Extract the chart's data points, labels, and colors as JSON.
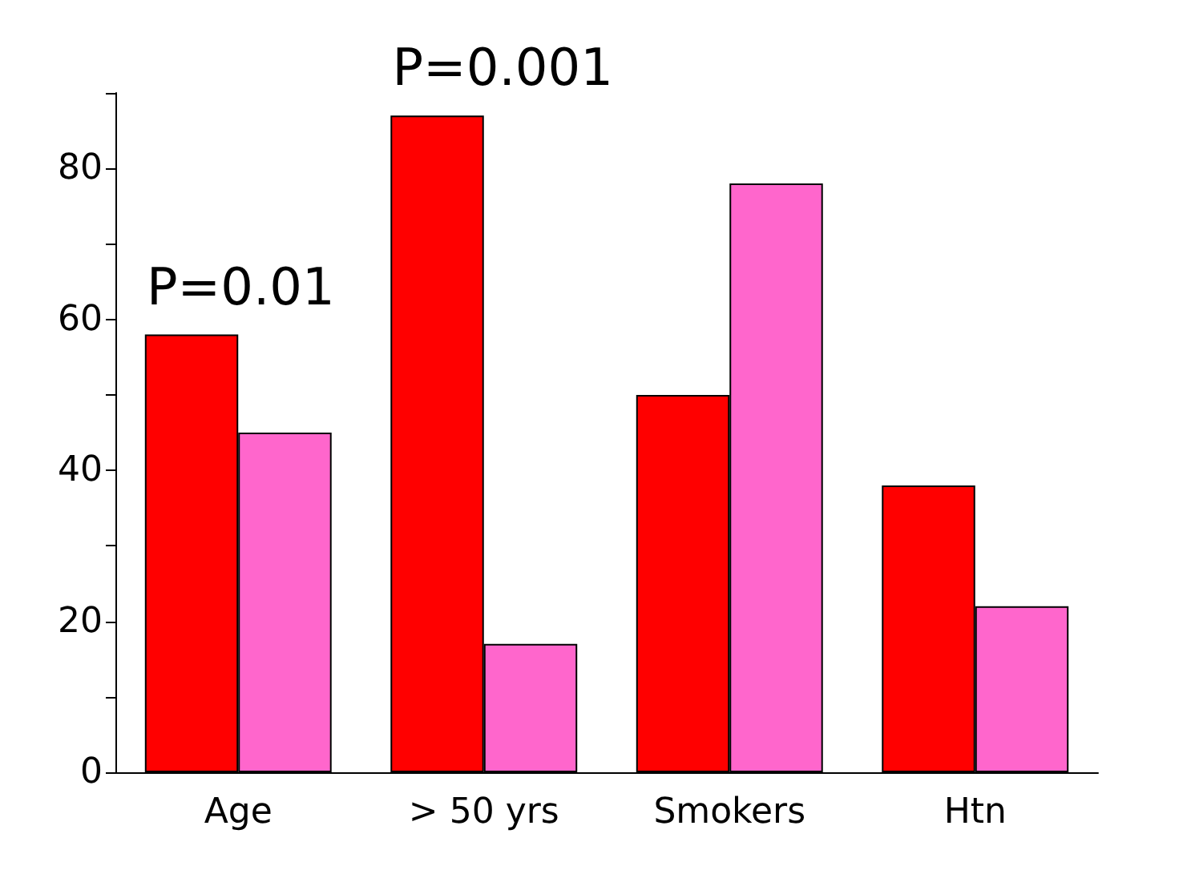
{
  "chart_data": {
    "type": "bar",
    "categories": [
      "Age",
      "> 50 yrs",
      "Smokers",
      "Htn"
    ],
    "series": [
      {
        "color": "#ff0000",
        "values": [
          58,
          87,
          50,
          38
        ]
      },
      {
        "color": "#ff66cc",
        "values": [
          45,
          17,
          78,
          22
        ]
      }
    ],
    "ylim": [
      0,
      90
    ],
    "yticks": [
      0,
      {
        "value": 10,
        "label": null
      },
      20,
      {
        "value": 30,
        "label": null
      },
      40,
      {
        "value": 50,
        "label": null
      },
      60,
      {
        "value": 70,
        "label": null
      },
      80,
      {
        "value": 90,
        "label": null
      }
    ],
    "annotations": [
      {
        "text": "P=0.01",
        "x": "Age",
        "y": 58
      },
      {
        "text": "P=0.001",
        "x": "> 50 yrs",
        "y": 87
      }
    ],
    "grid": false
  }
}
